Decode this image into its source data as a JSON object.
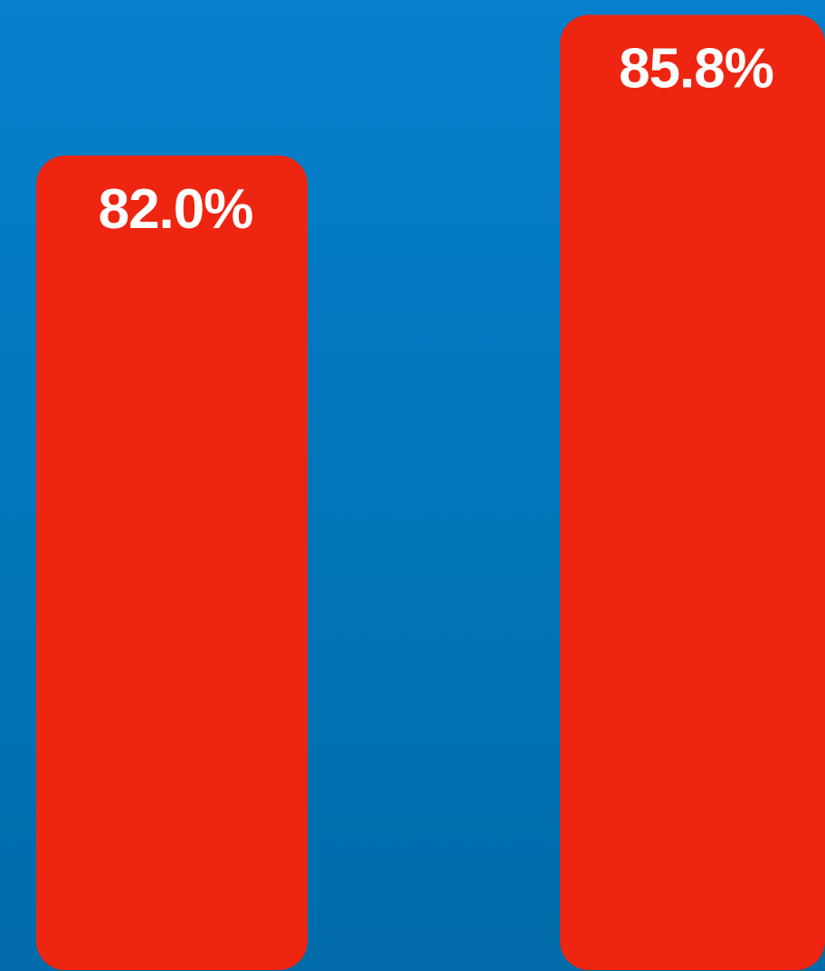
{
  "chart_data": {
    "type": "bar",
    "categories": [
      null,
      null
    ],
    "values": [
      82.0,
      85.8
    ],
    "value_labels": [
      "82.0%",
      "85.8%"
    ],
    "color": "#ee2510",
    "ylim": [
      60,
      86.2
    ]
  }
}
